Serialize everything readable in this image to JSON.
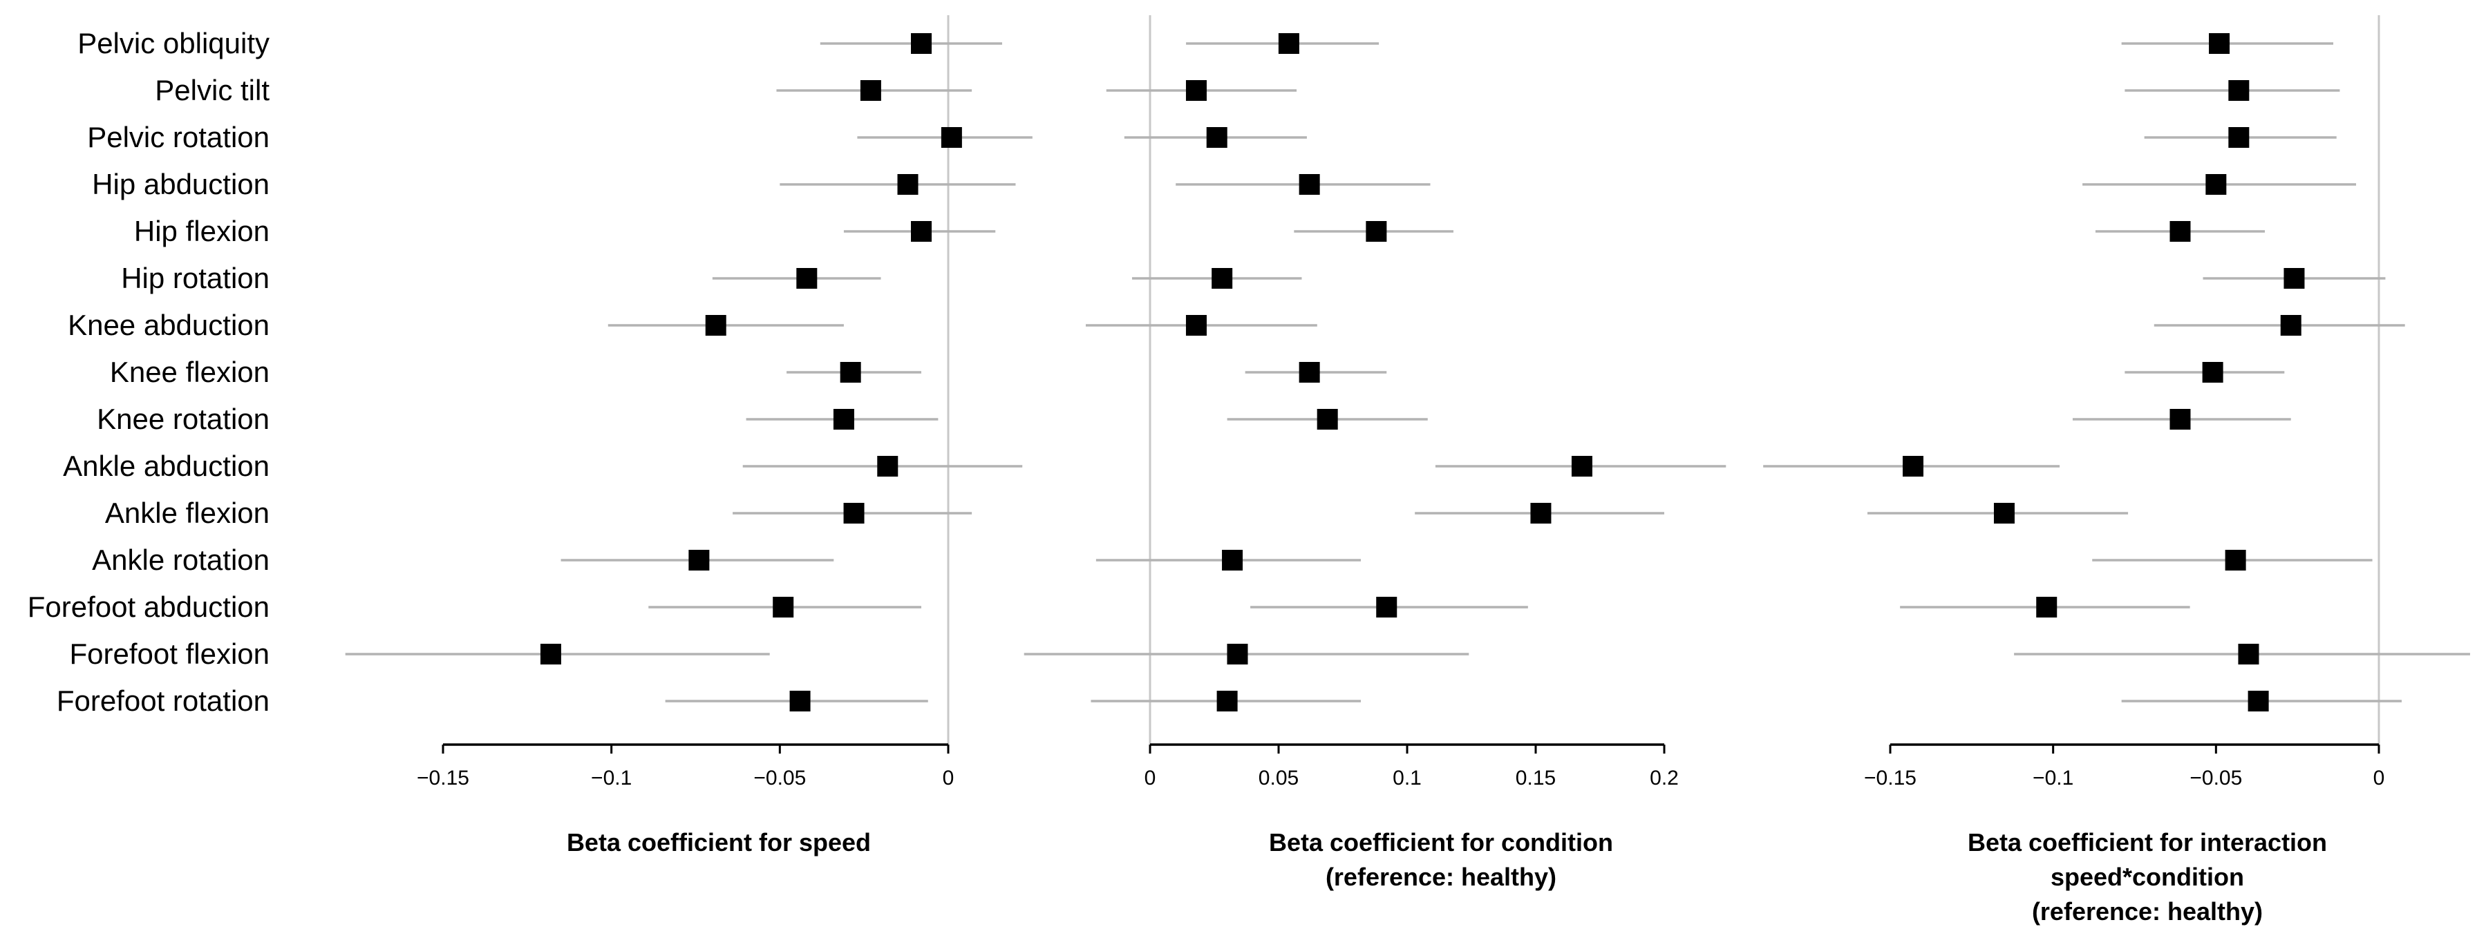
{
  "chart_data": {
    "type": "forest",
    "row_labels": [
      "Pelvic obliquity",
      "Pelvic tilt",
      "Pelvic rotation",
      "Hip abduction",
      "Hip flexion",
      "Hip rotation",
      "Knee abduction",
      "Knee flexion",
      "Knee rotation",
      "Ankle abduction",
      "Ankle flexion",
      "Ankle rotation",
      "Forefoot abduction",
      "Forefoot flexion",
      "Forefoot rotation"
    ],
    "panels": [
      {
        "title_lines": [
          "Beta coefficient for speed"
        ],
        "xlim": [
          -0.15,
          0
        ],
        "ticks": [
          -0.15,
          -0.1,
          -0.05,
          0
        ],
        "tick_labels": [
          "−0.15",
          "−0.1",
          "−0.05",
          "0"
        ],
        "reference_line": 0,
        "estimates": [
          -0.008,
          -0.023,
          0.001,
          -0.012,
          -0.008,
          -0.042,
          -0.069,
          -0.029,
          -0.031,
          -0.018,
          -0.028,
          -0.074,
          -0.049,
          -0.118,
          -0.044
        ],
        "ci_lower": [
          -0.038,
          -0.051,
          -0.027,
          -0.05,
          -0.031,
          -0.07,
          -0.101,
          -0.048,
          -0.06,
          -0.061,
          -0.064,
          -0.115,
          -0.089,
          -0.179,
          -0.084
        ],
        "ci_upper": [
          0.016,
          0.007,
          0.025,
          0.02,
          0.014,
          -0.02,
          -0.031,
          -0.008,
          -0.003,
          0.022,
          0.007,
          -0.034,
          -0.008,
          -0.053,
          -0.006
        ]
      },
      {
        "title_lines": [
          "Beta coefficient for condition",
          "(reference: healthy)"
        ],
        "xlim": [
          0,
          0.2
        ],
        "ticks": [
          0,
          0.05,
          0.1,
          0.15,
          0.2
        ],
        "tick_labels": [
          "0",
          "0.05",
          "0.1",
          "0.15",
          "0.2"
        ],
        "reference_line": 0,
        "estimates": [
          0.054,
          0.018,
          0.026,
          0.062,
          0.088,
          0.028,
          0.018,
          0.062,
          0.069,
          0.168,
          0.152,
          0.032,
          0.092,
          0.034,
          0.03
        ],
        "ci_lower": [
          0.014,
          -0.017,
          -0.01,
          0.01,
          0.056,
          -0.007,
          -0.025,
          0.037,
          0.03,
          0.111,
          0.103,
          -0.021,
          0.039,
          -0.049,
          -0.023
        ],
        "ci_upper": [
          0.089,
          0.057,
          0.061,
          0.109,
          0.118,
          0.059,
          0.065,
          0.092,
          0.108,
          0.224,
          0.2,
          0.082,
          0.147,
          0.124,
          0.082
        ]
      },
      {
        "title_lines": [
          "Beta coefficient for interaction",
          "speed*condition",
          "(reference: healthy)"
        ],
        "xlim": [
          -0.15,
          0
        ],
        "ticks": [
          -0.15,
          -0.1,
          -0.05,
          0
        ],
        "tick_labels": [
          "−0.15",
          "−0.1",
          "−0.05",
          "0"
        ],
        "reference_line": 0,
        "estimates": [
          -0.049,
          -0.043,
          -0.043,
          -0.05,
          -0.061,
          -0.026,
          -0.027,
          -0.051,
          -0.061,
          -0.143,
          -0.115,
          -0.044,
          -0.102,
          -0.04,
          -0.037
        ],
        "ci_lower": [
          -0.079,
          -0.078,
          -0.072,
          -0.091,
          -0.087,
          -0.054,
          -0.069,
          -0.078,
          -0.094,
          -0.189,
          -0.157,
          -0.088,
          -0.147,
          -0.112,
          -0.079
        ],
        "ci_upper": [
          -0.014,
          -0.012,
          -0.013,
          -0.007,
          -0.035,
          0.002,
          0.008,
          -0.029,
          -0.027,
          -0.098,
          -0.077,
          -0.002,
          -0.058,
          0.028,
          0.007
        ]
      }
    ],
    "marker": "square",
    "marker_color": "#000000",
    "ci_color": "#b3b3b3",
    "reference_line_color": "#c8c8c8",
    "axis_color": "#000000"
  }
}
